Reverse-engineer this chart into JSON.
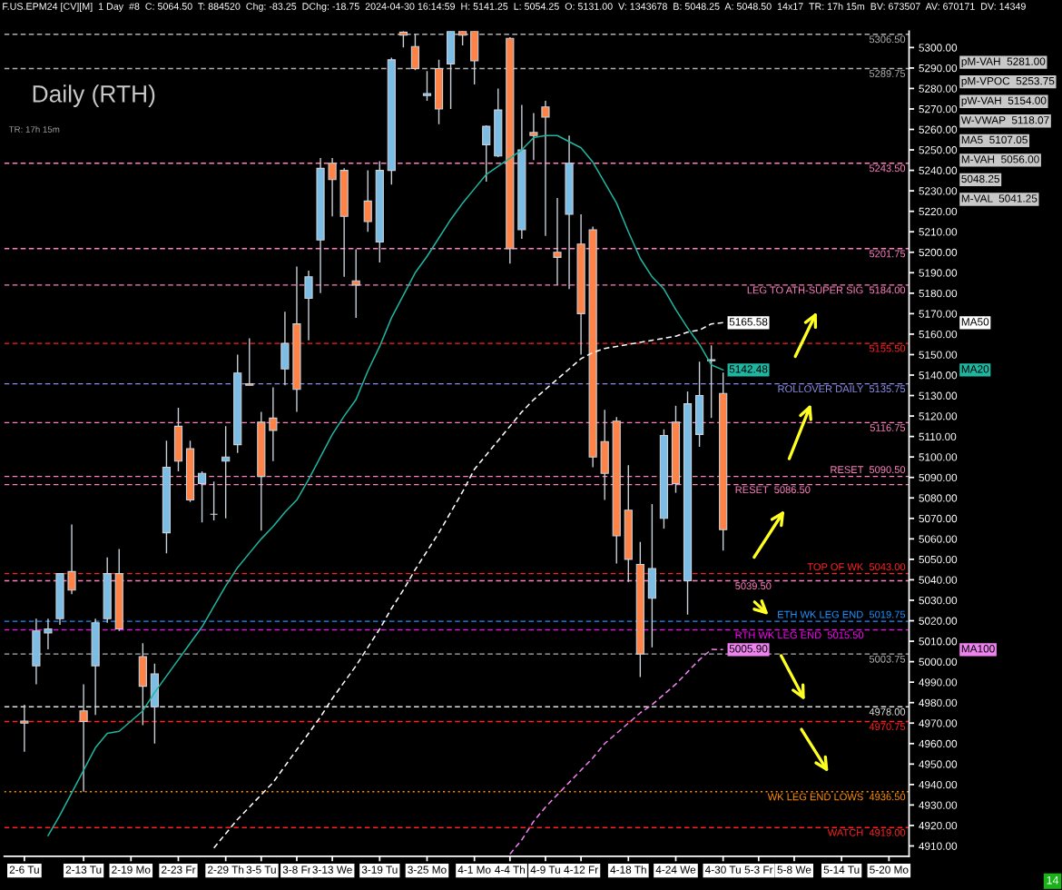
{
  "chart_data": {
    "type": "candlestick",
    "title": "Daily (RTH)",
    "subtitle": "F.US.EPM24 [CV][M]  1 Day  #8  C: 5064.50  T: 884520  Chg: -83.25  DChg: -18.75  2024-04-30 16:14:59  H: 5141.25  L: 5054.25  O: 5131.00  V: 1343678  B: 5048.25  A: 5048.50  14x17  TR: 17h 15m  BV: 673507  AV: 670171  DV: 14349",
    "categories": [
      "2-6 Tu",
      null,
      null,
      null,
      null,
      "2-13 Tu",
      null,
      null,
      null,
      "2-19 Mo",
      null,
      null,
      null,
      "2-23 Fr",
      null,
      null,
      null,
      "2-29 Th",
      null,
      null,
      "3-5 Tu",
      null,
      null,
      "3-8 Fr",
      null,
      null,
      "3-13 We",
      null,
      null,
      null,
      "3-19 Tu",
      null,
      null,
      null,
      "3-25 Mo",
      null,
      null,
      null,
      "4-1 Mo",
      null,
      null,
      "4-4 Th",
      null,
      null,
      "4-9 Tu",
      null,
      null,
      "4-12 Fr",
      null,
      null,
      null,
      "4-18 Th",
      null,
      null,
      null,
      "4-24 We",
      null,
      null,
      null,
      "4-30 Tu",
      null,
      null,
      "5-3 Fr",
      null,
      null,
      "5-8 We",
      null,
      null,
      null,
      "5-14 Tu",
      null,
      null,
      null,
      "5-20 Mo",
      null
    ],
    "ohlc": [
      [
        4971,
        4979,
        4956,
        4970
      ],
      [
        4998,
        5021,
        4989,
        5015
      ],
      [
        5014,
        5021,
        5006,
        5016
      ],
      [
        5021,
        5043,
        5018,
        5043
      ],
      [
        5044,
        5067,
        5033,
        5035
      ],
      [
        4976,
        4989,
        4936.5,
        4970.75
      ],
      [
        4998,
        5021,
        4974,
        5019
      ],
      [
        5021,
        5051,
        5019,
        5043
      ],
      [
        5043,
        5055,
        5015,
        5016
      ],
      null,
      [
        5002.5,
        5009,
        4969,
        4988
      ],
      [
        4978,
        4999,
        4960,
        4994
      ],
      [
        5063,
        5108,
        5053,
        5095
      ],
      [
        5115,
        5124,
        5093,
        5098
      ],
      [
        5104,
        5108,
        5078,
        5079
      ],
      [
        5087,
        5093,
        5068,
        5092
      ],
      [
        5072,
        5088,
        5069,
        5072
      ],
      [
        5098,
        5115,
        5070,
        5100
      ],
      [
        5106,
        5150,
        5102,
        5141
      ],
      [
        5135.75,
        5158,
        5135,
        5135
      ],
      [
        5117,
        5122,
        5064,
        5090.5
      ],
      [
        5119,
        5134,
        5098,
        5113
      ],
      [
        5143,
        5171,
        5135,
        5155.5
      ],
      [
        5165,
        5193,
        5122,
        5133
      ],
      [
        5177.5,
        5191,
        5157,
        5188
      ],
      [
        5206,
        5246,
        5180,
        5241
      ],
      [
        5243.5,
        5246,
        5217.5,
        5235.5
      ],
      [
        5240,
        5241,
        5188,
        5217.5
      ],
      [
        5186,
        5201.5,
        5168,
        5184
      ],
      [
        5225,
        5240,
        5210,
        5215
      ],
      [
        5205,
        5244.5,
        5195,
        5240
      ],
      [
        5240,
        5295,
        5233,
        5294
      ],
      [
        5307.5,
        5308,
        5300,
        5306
      ],
      [
        5300.5,
        5306.5,
        5289,
        5289.75
      ],
      [
        5276.5,
        5288.5,
        5274,
        5277.5
      ],
      [
        5289.75,
        5294,
        5262.5,
        5270
      ],
      [
        5292,
        5308,
        5270,
        5308
      ],
      [
        5308,
        5308,
        5301,
        5306
      ],
      [
        5308,
        5308,
        5282,
        5293.5
      ],
      [
        5252.5,
        5262,
        5234.5,
        5261.5
      ],
      [
        5247,
        5280,
        5246.5,
        5269.5
      ],
      [
        5304.5,
        5305,
        5194.5,
        5201.75
      ],
      [
        5211,
        5272,
        5206.5,
        5250
      ],
      [
        5258.5,
        5268,
        5245,
        5257
      ],
      [
        5271,
        5274,
        5208,
        5266
      ],
      [
        5200,
        5226.5,
        5184,
        5197.5
      ],
      [
        5218.5,
        5257,
        5182,
        5243.5
      ],
      [
        5204,
        5218.5,
        5150,
        5170
      ],
      [
        5211,
        5212.5,
        5095,
        5100
      ],
      [
        5107.5,
        5123,
        5079,
        5092
      ],
      [
        5117.5,
        5119.5,
        5048,
        5061.5
      ],
      [
        5074,
        5096,
        5039,
        5050
      ],
      [
        5047.5,
        5058.5,
        4992.5,
        5003.75
      ],
      [
        5031,
        5077,
        5007,
        5045.5
      ],
      [
        5070,
        5113.5,
        5065,
        5110.5
      ],
      [
        5117,
        5125,
        5082.5,
        5087
      ],
      [
        5039.5,
        5132,
        5023,
        5126
      ],
      [
        5111,
        5146.5,
        5105,
        5130
      ],
      [
        5147.5,
        5154.5,
        5119,
        5147
      ],
      [
        5131,
        5141.25,
        5054.25,
        5064.5
      ],
      null,
      null,
      null,
      null,
      null,
      null,
      null,
      null,
      null,
      null,
      null,
      null,
      null,
      null,
      null
    ],
    "colors": [
      "#ff8247",
      "#7cbde6",
      "#7cbde6",
      "#7cbde6",
      "#ff8247",
      "#ff8247",
      "#7cbde6",
      "#7cbde6",
      "#ff8247",
      null,
      "#ff8247",
      "#7cbde6",
      "#7cbde6",
      "#ff8247",
      "#ff8247",
      "#7cbde6",
      "#d9d9d9",
      "#7cbde6",
      "#7cbde6",
      "#ff8247",
      "#ff8247",
      "#ff8247",
      "#7cbde6",
      "#ff8247",
      "#7cbde6",
      "#7cbde6",
      "#ff8247",
      "#ff8247",
      "#ff8247",
      "#ff8247",
      "#7cbde6",
      "#7cbde6",
      "#ff8247",
      "#ff8247",
      "#7cbde6",
      "#ff8247",
      "#7cbde6",
      "#ff8247",
      "#ff8247",
      "#7cbde6",
      "#7cbde6",
      "#ff8247",
      "#7cbde6",
      "#ff8247",
      "#ff8247",
      "#ff8247",
      "#7cbde6",
      "#ff8247",
      "#ff8247",
      "#ff8247",
      "#ff8247",
      "#ff8247",
      "#ff8247",
      "#7cbde6",
      "#7cbde6",
      "#ff8247",
      "#7cbde6",
      "#7cbde6",
      "#d9d9d9",
      "#ff8247",
      null,
      null,
      null,
      null,
      null,
      null,
      null,
      null,
      null,
      null,
      null,
      null,
      null,
      null,
      null
    ],
    "series": [
      {
        "type": "line",
        "name": "MA20",
        "color": "#1fb5a0",
        "line_style": "solid",
        "value_labels": [
          null,
          null,
          null,
          null,
          null,
          null,
          null,
          null,
          null,
          null,
          null,
          null,
          null,
          null,
          null,
          null,
          null,
          null,
          null,
          null,
          null,
          null,
          null,
          null,
          null,
          null,
          null,
          null,
          null,
          null,
          null,
          null,
          null,
          null,
          null,
          null,
          null,
          null,
          null,
          null,
          null,
          null,
          null,
          null,
          null,
          null,
          null,
          null,
          null,
          null,
          null,
          null,
          null,
          null,
          null,
          null,
          null,
          null,
          null,
          "5142.48",
          null,
          null,
          null,
          null,
          null,
          null,
          null,
          null,
          null,
          null,
          null,
          null,
          null,
          null,
          null
        ],
        "values": [
          null,
          null,
          4915,
          4925,
          4936,
          4947,
          4958,
          4965,
          4966,
          4971,
          4976,
          4985,
          4993,
          5001,
          5009,
          5017,
          5027,
          5037,
          5046,
          5053,
          5060,
          5066,
          5073,
          5079,
          5089,
          5100,
          5111,
          5120,
          5128,
          5142,
          5154,
          5168,
          5179,
          5190,
          5198,
          5207,
          5216,
          5224,
          5231,
          5238,
          5242,
          5246,
          5250,
          5256,
          5257,
          5257,
          5254,
          5251,
          5244,
          5234,
          5224,
          5210,
          5197,
          5188,
          5182,
          5172,
          5163,
          5155,
          5145,
          5142.48,
          null,
          null,
          null,
          null,
          null,
          null,
          null,
          null,
          null,
          null,
          null,
          null,
          null,
          null,
          null
        ]
      },
      {
        "type": "line",
        "name": "MA50",
        "color": "#ffffff",
        "line_style": "dashed",
        "value_labels": [
          null,
          null,
          null,
          null,
          null,
          null,
          null,
          null,
          null,
          null,
          null,
          null,
          null,
          null,
          null,
          null,
          null,
          null,
          null,
          null,
          null,
          null,
          null,
          null,
          null,
          null,
          null,
          null,
          null,
          null,
          null,
          null,
          null,
          null,
          null,
          null,
          null,
          null,
          null,
          null,
          null,
          null,
          null,
          null,
          null,
          null,
          null,
          null,
          null,
          null,
          null,
          null,
          null,
          null,
          null,
          null,
          null,
          null,
          null,
          "5165.58",
          null,
          null,
          null,
          null,
          null,
          null,
          null,
          null,
          null,
          null,
          null,
          null,
          null,
          null,
          null
        ],
        "values": [
          null,
          null,
          null,
          null,
          null,
          null,
          null,
          null,
          null,
          null,
          null,
          null,
          null,
          null,
          null,
          null,
          4909,
          4916,
          4923,
          4929,
          4935,
          4941,
          4949,
          4957,
          4965,
          4973,
          4982,
          4990,
          4998,
          5007,
          5016,
          5026,
          5035,
          5045,
          5054,
          5063,
          5073,
          5083,
          5094,
          5101,
          5108,
          5115,
          5122,
          5128,
          5133,
          5138,
          5143,
          5148,
          5151,
          5153,
          5154,
          5155,
          5156,
          5157,
          5158,
          5159,
          5161,
          5162,
          5165,
          5165.58,
          null,
          null,
          null,
          null,
          null,
          null,
          null,
          null,
          null,
          null,
          null,
          null,
          null,
          null,
          null
        ]
      },
      {
        "type": "line",
        "name": "MA100",
        "color": "#ee82ee",
        "line_style": "dashed",
        "value_labels": [
          null,
          null,
          null,
          null,
          null,
          null,
          null,
          null,
          null,
          null,
          null,
          null,
          null,
          null,
          null,
          null,
          null,
          null,
          null,
          null,
          null,
          null,
          null,
          null,
          null,
          null,
          null,
          null,
          null,
          null,
          null,
          null,
          null,
          null,
          null,
          null,
          null,
          null,
          null,
          null,
          null,
          null,
          null,
          null,
          null,
          null,
          null,
          null,
          null,
          null,
          null,
          null,
          null,
          null,
          null,
          null,
          null,
          null,
          null,
          "5005.90",
          null,
          null,
          null,
          null,
          null,
          null,
          null,
          null,
          null,
          null,
          null,
          null,
          null,
          null,
          null
        ],
        "values": [
          null,
          null,
          null,
          null,
          null,
          null,
          null,
          null,
          null,
          null,
          null,
          null,
          null,
          null,
          null,
          null,
          null,
          null,
          null,
          null,
          null,
          null,
          null,
          null,
          null,
          null,
          null,
          null,
          null,
          null,
          null,
          null,
          null,
          null,
          null,
          null,
          null,
          null,
          null,
          null,
          null,
          4906,
          4913,
          4922,
          4929,
          4935,
          4941,
          4947,
          4953,
          4960,
          4965,
          4970,
          4975,
          4979,
          4984,
          4989,
          4995,
          5001,
          5006,
          5005.9,
          null,
          null,
          null,
          null,
          null,
          null,
          null,
          null,
          null,
          null,
          null,
          null,
          null,
          null,
          null
        ]
      }
    ],
    "ylim": [
      4905,
      5308
    ],
    "yticks": [
      {
        "value": 4910,
        "label": "4910.00"
      },
      {
        "value": 4920,
        "label": "4920.00"
      },
      {
        "value": 4930,
        "label": "4930.00"
      },
      {
        "value": 4940,
        "label": "4940.00"
      },
      {
        "value": 4950,
        "label": "4950.00"
      },
      {
        "value": 4960,
        "label": "4960.00"
      },
      {
        "value": 4970,
        "label": "4970.00"
      },
      {
        "value": 4980,
        "label": "4980.00"
      },
      {
        "value": 4990,
        "label": "4990.00"
      },
      {
        "value": 5000,
        "label": "5000.00"
      },
      {
        "value": 5010,
        "label": "5010.00"
      },
      {
        "value": 5020,
        "label": "5020.00"
      },
      {
        "value": 5030,
        "label": "5030.00"
      },
      {
        "value": 5040,
        "label": "5040.00"
      },
      {
        "value": 5050,
        "label": "5050.00"
      },
      {
        "value": 5060,
        "label": "5060.00"
      },
      {
        "value": 5070,
        "label": "5070.00"
      },
      {
        "value": 5080,
        "label": "5080.00"
      },
      {
        "value": 5090,
        "label": "5090.00"
      },
      {
        "value": 5100,
        "label": "5100.00"
      },
      {
        "value": 5110,
        "label": "5110.00"
      },
      {
        "value": 5120,
        "label": "5120.00"
      },
      {
        "value": 5130,
        "label": "5130.00"
      },
      {
        "value": 5140,
        "label": "5140.00"
      },
      {
        "value": 5150,
        "label": "5150.00"
      },
      {
        "value": 5160,
        "label": "5160.00"
      },
      {
        "value": 5170,
        "label": "5170.00"
      },
      {
        "value": 5180,
        "label": "5180.00"
      },
      {
        "value": 5190,
        "label": "5190.00"
      },
      {
        "value": 5200,
        "label": "5200.00"
      },
      {
        "value": 5210,
        "label": "5210.00"
      },
      {
        "value": 5220,
        "label": "5220.00"
      },
      {
        "value": 5230,
        "label": "5230.00"
      },
      {
        "value": 5240,
        "label": "5240.00"
      },
      {
        "value": 5250,
        "label": "5250.00"
      },
      {
        "value": 5260,
        "label": "5260.00"
      },
      {
        "value": 5270,
        "label": "5270.00"
      },
      {
        "value": 5280,
        "label": "5280.00"
      },
      {
        "value": 5290,
        "label": "5290.00"
      },
      {
        "value": 5300,
        "label": "5300.00"
      }
    ],
    "ref_lines": [
      {
        "axis": "y",
        "value": 5306.5,
        "label": "5306.50",
        "color": "#b0b0b0",
        "line_style": "dashed"
      },
      {
        "axis": "y",
        "value": 5289.75,
        "label": "5289.75",
        "color": "#b0b0b0",
        "line_style": "dashed"
      },
      {
        "axis": "y",
        "value": 5243.5,
        "label": "5243.50",
        "color": "#ff7fbf",
        "line_style": "dashed"
      },
      {
        "axis": "y",
        "value": 5201.75,
        "label": "5201.75",
        "color": "#ff7fbf",
        "line_style": "dashed"
      },
      {
        "axis": "y",
        "value": 5184,
        "label": "LEG TO ATH-SUPER SIG  5184.00",
        "color": "#ff7fbf",
        "line_style": "dashed"
      },
      {
        "axis": "y",
        "value": 5155.5,
        "label": "5155.50",
        "color": "#ff2020",
        "line_style": "dashed"
      },
      {
        "axis": "y",
        "value": 5135.75,
        "label": "ROLLOVER DAILY  5135.75",
        "color": "#8c8ce6",
        "line_style": "dashed"
      },
      {
        "axis": "y",
        "value": 5116.75,
        "label": "5116.75",
        "color": "#ff7fbf",
        "line_style": "dashed"
      },
      {
        "axis": "y",
        "value": 5090.5,
        "label": "RESET  5090.50",
        "color": "#ff7fbf",
        "line_style": "dashed"
      },
      {
        "axis": "y",
        "value": 5086.5,
        "label": "RESET  5086.50",
        "color": "#ff7fbf",
        "line_style": "dashed"
      },
      {
        "axis": "y",
        "value": 5043,
        "label": "TOP OF WK  5043.00",
        "color": "#ff2020",
        "line_style": "dashed"
      },
      {
        "axis": "y",
        "value": 5039.5,
        "label": "5039.50",
        "color": "#ff7fbf",
        "line_style": "dashed"
      },
      {
        "axis": "y",
        "value": 5019.75,
        "label": "ETH WK LEG END  5019.75",
        "color": "#1e90ff",
        "line_style": "dashed"
      },
      {
        "axis": "y",
        "value": 5015.5,
        "label": "RTH WK LEG END  5015.50",
        "color": "#ff00ff",
        "line_style": "dashed"
      },
      {
        "axis": "y",
        "value": 5003.75,
        "label": "5003.75",
        "color": "#b0b0b0",
        "line_style": "dashed"
      },
      {
        "axis": "y",
        "value": 4978,
        "label": "4978.00",
        "color": "#e0e0e0",
        "line_style": "dashed"
      },
      {
        "axis": "y",
        "value": 4970.75,
        "label": "4970.75",
        "color": "#ff2020",
        "line_style": "dashed"
      },
      {
        "axis": "y",
        "value": 4936.5,
        "label": "WK LEG END LOWS  4936.50",
        "color": "#ff8c00",
        "line_style": "dotted"
      },
      {
        "axis": "y",
        "value": 4919,
        "label": "WATCH  4919.00",
        "color": "#ff2020",
        "line_style": "dashed"
      }
    ],
    "legend": "right",
    "annotations": [
      "TR: 17h 15m",
      "14",
      "pM-VAH  5281.00",
      "pM-VPOC  5253.75",
      "pW-VAH  5154.00",
      "W-VWAP  5118.07",
      "MA5  5107.05",
      "M-VAH  5056.00",
      "5048.25",
      "M-VAL  5041.25"
    ]
  }
}
